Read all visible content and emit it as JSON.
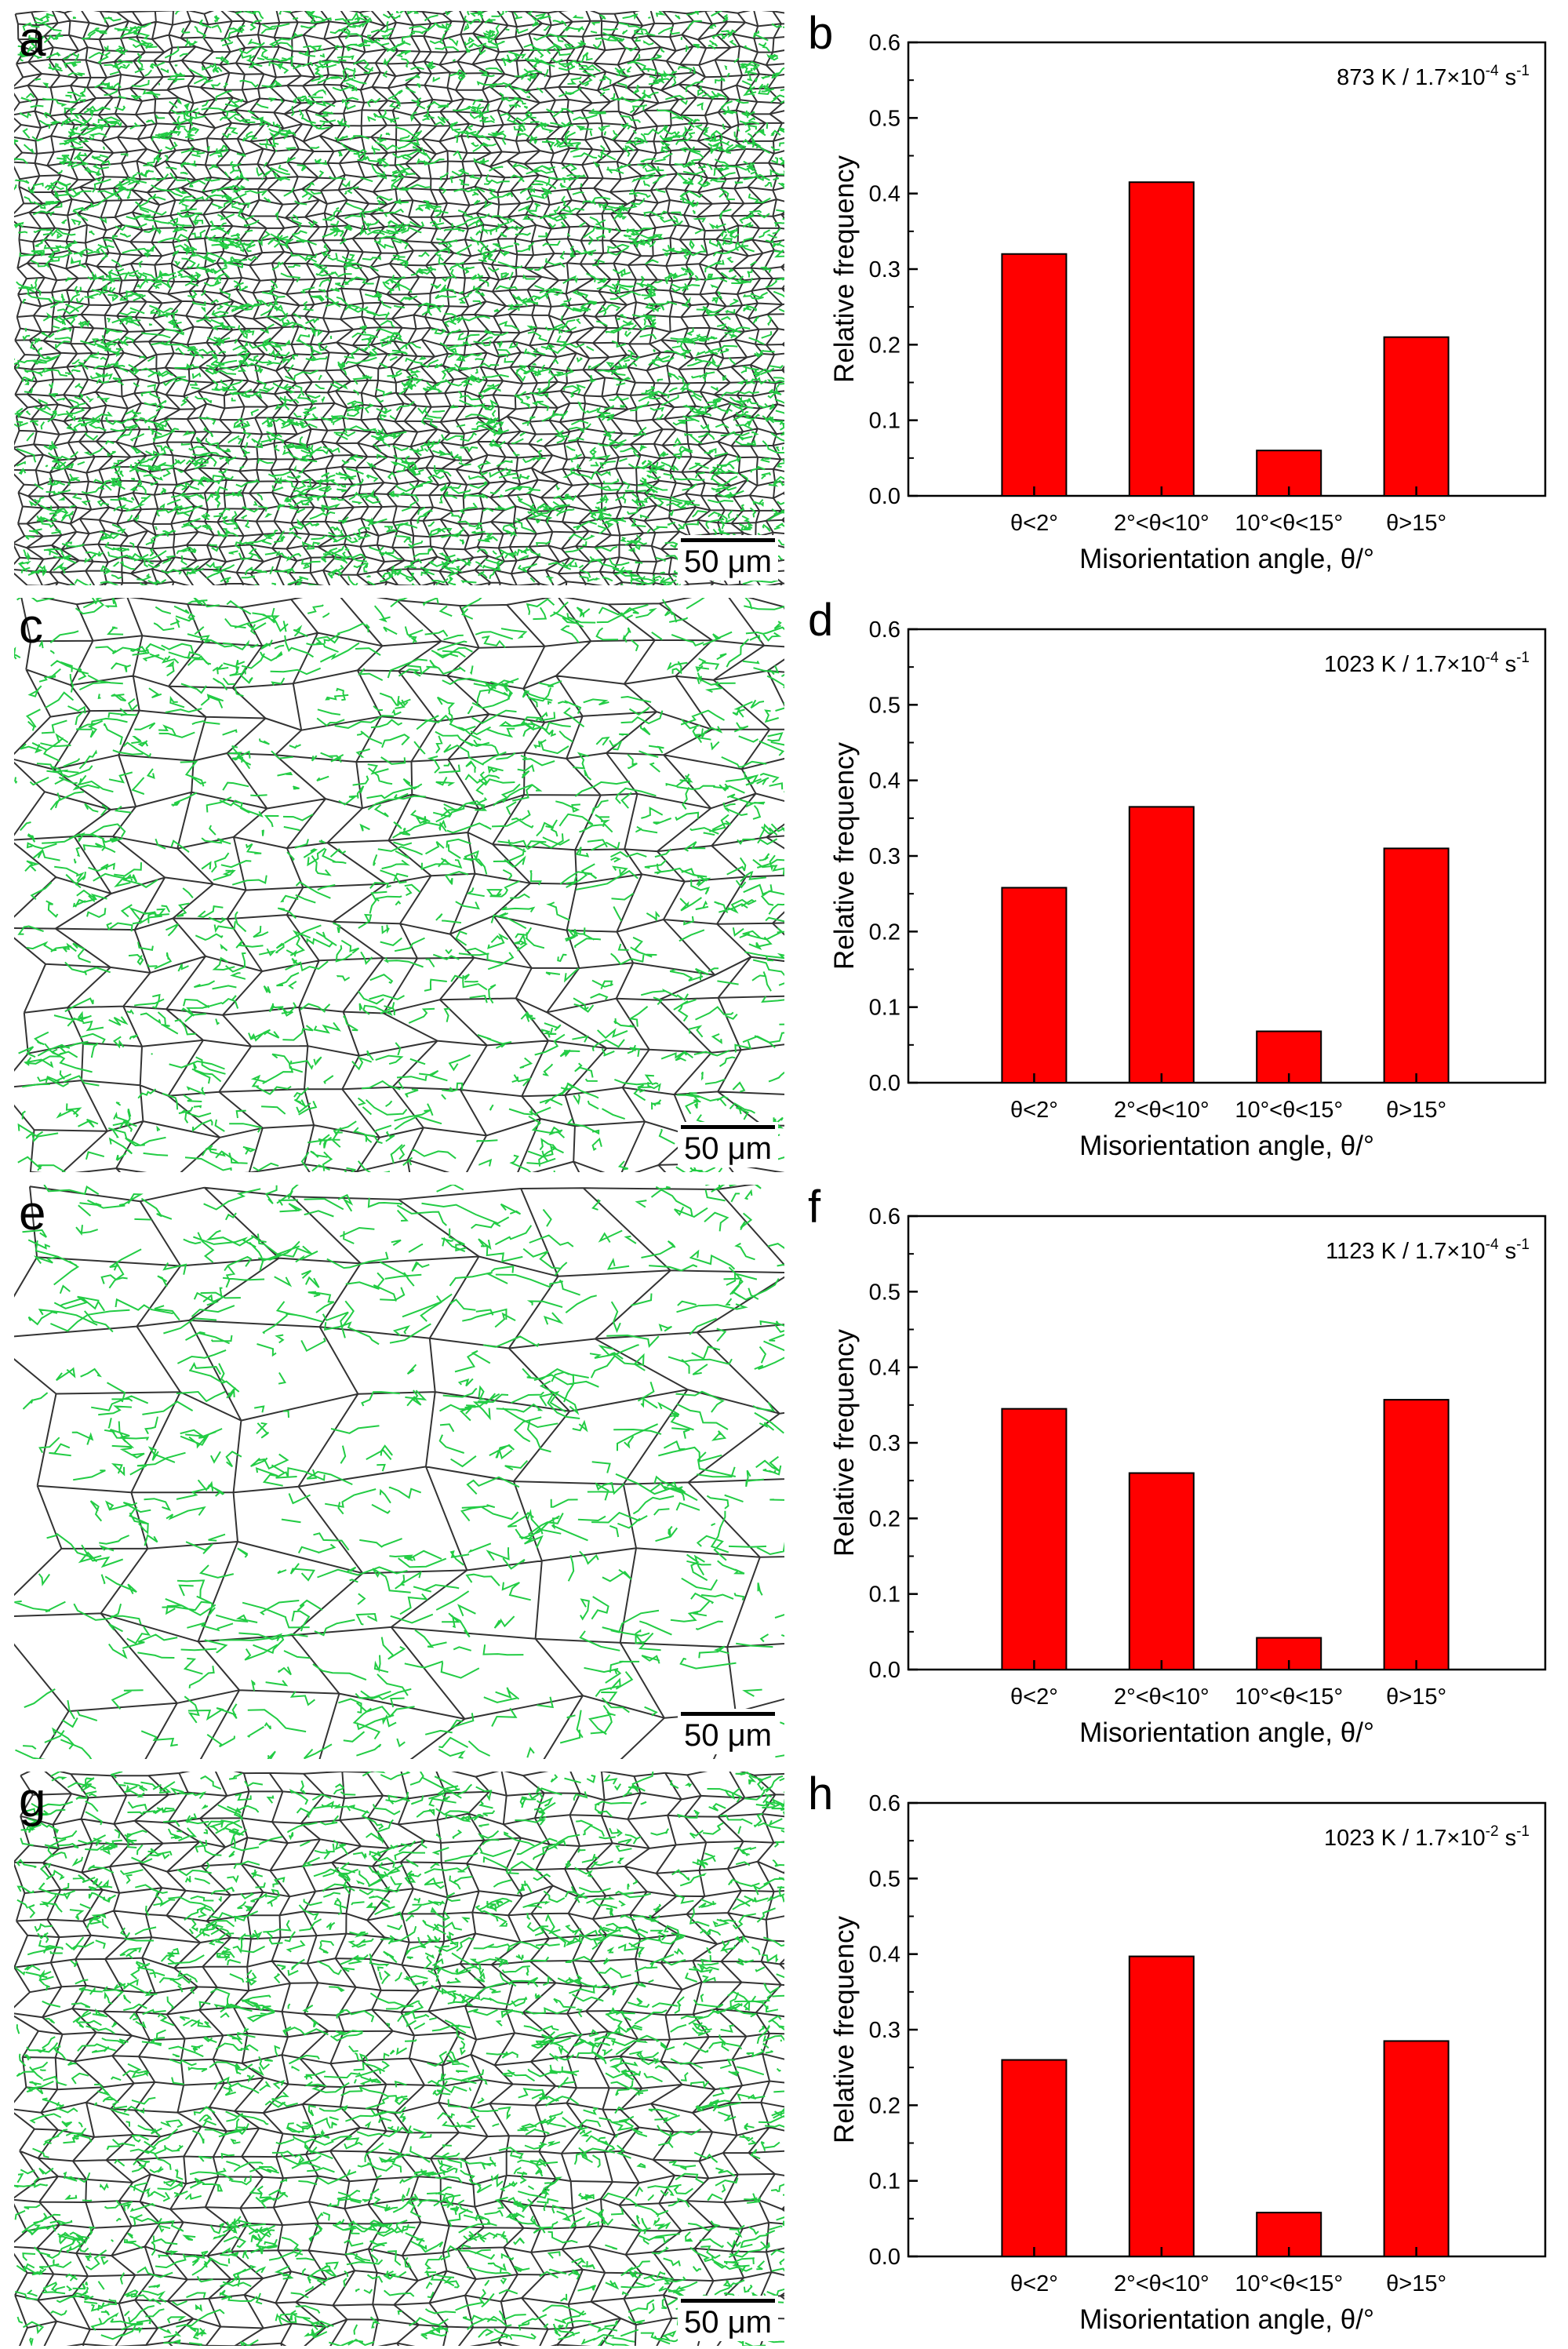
{
  "figure": {
    "scale_bar_label": "50 μm",
    "colors": {
      "low_angle_boundary": "#22cc44",
      "high_angle_boundary": "#333333",
      "bar_fill": "#ff0000",
      "bar_stroke": "#000000"
    },
    "micrographs": [
      {
        "letter": "a",
        "description_icon": "ebsd-boundary-map-icon"
      },
      {
        "letter": "c",
        "description_icon": "ebsd-boundary-map-icon"
      },
      {
        "letter": "e",
        "description_icon": "ebsd-boundary-map-icon"
      },
      {
        "letter": "g",
        "description_icon": "ebsd-boundary-map-icon"
      }
    ]
  },
  "chart_data": [
    {
      "type": "bar",
      "panel": "b",
      "annotation_main": "873 K / 1.7×10",
      "annotation_exp": "-4",
      "annotation_unit": " s",
      "annotation_unit_exp": "-1",
      "categories": [
        "θ<2°",
        "2°<θ<10°",
        "10°<θ<15°",
        "θ>15°"
      ],
      "values": [
        0.32,
        0.415,
        0.06,
        0.21
      ],
      "ylabel": "Relative frequency",
      "xlabel": "Misorientation angle, θ/°",
      "ylim": [
        0,
        0.6
      ],
      "yticks": [
        "0.0",
        "0.1",
        "0.2",
        "0.3",
        "0.4",
        "0.5",
        "0.6"
      ]
    },
    {
      "type": "bar",
      "panel": "d",
      "annotation_main": "1023 K / 1.7×10",
      "annotation_exp": "-4",
      "annotation_unit": " s",
      "annotation_unit_exp": "-1",
      "categories": [
        "θ<2°",
        "2°<θ<10°",
        "10°<θ<15°",
        "θ>15°"
      ],
      "values": [
        0.258,
        0.365,
        0.068,
        0.31
      ],
      "ylabel": "Relative frequency",
      "xlabel": "Misorientation angle, θ/°",
      "ylim": [
        0,
        0.6
      ],
      "yticks": [
        "0.0",
        "0.1",
        "0.2",
        "0.3",
        "0.4",
        "0.5",
        "0.6"
      ]
    },
    {
      "type": "bar",
      "panel": "f",
      "annotation_main": "1123 K / 1.7×10",
      "annotation_exp": "-4",
      "annotation_unit": " s",
      "annotation_unit_exp": "-1",
      "categories": [
        "θ<2°",
        "2°<θ<10°",
        "10°<θ<15°",
        "θ>15°"
      ],
      "values": [
        0.345,
        0.26,
        0.042,
        0.357
      ],
      "ylabel": "Relative frequency",
      "xlabel": "Misorientation angle, θ/°",
      "ylim": [
        0,
        0.6
      ],
      "yticks": [
        "0.0",
        "0.1",
        "0.2",
        "0.3",
        "0.4",
        "0.5",
        "0.6"
      ]
    },
    {
      "type": "bar",
      "panel": "h",
      "annotation_main": "1023 K / 1.7×10",
      "annotation_exp": "-2",
      "annotation_unit": " s",
      "annotation_unit_exp": "-1",
      "categories": [
        "θ<2°",
        "2°<θ<10°",
        "10°<θ<15°",
        "θ>15°"
      ],
      "values": [
        0.26,
        0.397,
        0.058,
        0.285
      ],
      "ylabel": "Relative frequency",
      "xlabel": "Misorientation angle, θ/°",
      "ylim": [
        0,
        0.6
      ],
      "yticks": [
        "0.0",
        "0.1",
        "0.2",
        "0.3",
        "0.4",
        "0.5",
        "0.6"
      ]
    }
  ]
}
